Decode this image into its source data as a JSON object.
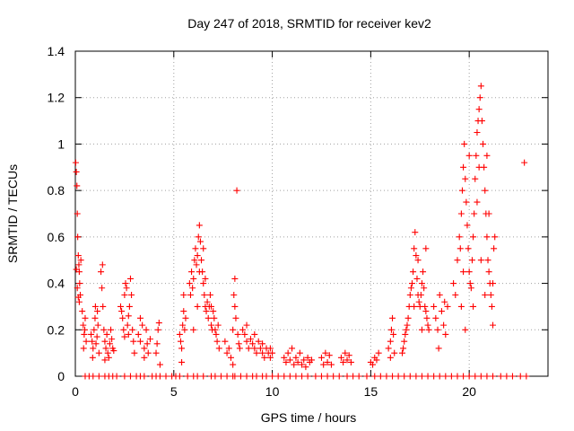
{
  "chart_data": {
    "type": "scatter",
    "title": "Day 247 of 2018, SRMTID for receiver kev2",
    "xlabel": "GPS time / hours",
    "ylabel": "SRMTID / TECUs",
    "xlim": [
      0,
      24
    ],
    "ylim": [
      0,
      1.4
    ],
    "xticks": [
      "0",
      "5",
      "10",
      "15",
      "20"
    ],
    "xtick_values": [
      0,
      5,
      10,
      15,
      20
    ],
    "yticks": [
      "0",
      "0.2",
      "0.4",
      "0.6",
      "0.8",
      "1",
      "1.2",
      "1.4"
    ],
    "ytick_values": [
      0,
      0.2,
      0.4,
      0.6,
      0.8,
      1.0,
      1.2,
      1.4
    ],
    "grid": true,
    "marker": "+",
    "marker_color": "#ff0000",
    "series": [
      {
        "name": "SRMTID kev2",
        "points": [
          [
            0.02,
            0.92
          ],
          [
            0.05,
            0.88
          ],
          [
            0.08,
            0.82
          ],
          [
            0.1,
            0.7
          ],
          [
            0.12,
            0.6
          ],
          [
            0.15,
            0.52
          ],
          [
            0.18,
            0.48
          ],
          [
            0.2,
            0.45
          ],
          [
            0.22,
            0.4
          ],
          [
            0.25,
            0.35
          ],
          [
            0.28,
            0.5
          ],
          [
            0.05,
            0.46
          ],
          [
            0.1,
            0.38
          ],
          [
            0.15,
            0.34
          ],
          [
            0.2,
            0.32
          ],
          [
            0.4,
            0.22
          ],
          [
            0.45,
            0.18
          ],
          [
            0.5,
            0.25
          ],
          [
            0.55,
            0.15
          ],
          [
            0.35,
            0.28
          ],
          [
            0.42,
            0.12
          ],
          [
            0.48,
            0.2
          ],
          [
            0.8,
            0.18
          ],
          [
            0.85,
            0.15
          ],
          [
            0.9,
            0.12
          ],
          [
            0.95,
            0.2
          ],
          [
            1.0,
            0.25
          ],
          [
            1.05,
            0.14
          ],
          [
            1.1,
            0.17
          ],
          [
            1.15,
            0.22
          ],
          [
            1.2,
            0.1
          ],
          [
            0.88,
            0.08
          ],
          [
            1.02,
            0.3
          ],
          [
            1.12,
            0.28
          ],
          [
            1.3,
            0.45
          ],
          [
            1.35,
            0.38
          ],
          [
            1.4,
            0.3
          ],
          [
            1.45,
            0.2
          ],
          [
            1.5,
            0.15
          ],
          [
            1.55,
            0.12
          ],
          [
            1.6,
            0.18
          ],
          [
            1.65,
            0.1
          ],
          [
            1.7,
            0.08
          ],
          [
            1.75,
            0.14
          ],
          [
            1.8,
            0.2
          ],
          [
            1.85,
            0.16
          ],
          [
            1.9,
            0.12
          ],
          [
            1.95,
            0.11
          ],
          [
            1.38,
            0.48
          ],
          [
            1.5,
            0.07
          ],
          [
            2.3,
            0.3
          ],
          [
            2.35,
            0.28
          ],
          [
            2.4,
            0.25
          ],
          [
            2.45,
            0.2
          ],
          [
            2.5,
            0.35
          ],
          [
            2.55,
            0.4
          ],
          [
            2.6,
            0.38
          ],
          [
            2.65,
            0.22
          ],
          [
            2.7,
            0.18
          ],
          [
            2.75,
            0.3
          ],
          [
            2.8,
            0.42
          ],
          [
            2.85,
            0.35
          ],
          [
            2.9,
            0.2
          ],
          [
            2.95,
            0.15
          ],
          [
            3.0,
            0.1
          ],
          [
            2.5,
            0.17
          ],
          [
            2.7,
            0.26
          ],
          [
            3.2,
            0.18
          ],
          [
            3.3,
            0.15
          ],
          [
            3.4,
            0.22
          ],
          [
            3.5,
            0.12
          ],
          [
            3.6,
            0.2
          ],
          [
            3.7,
            0.1
          ],
          [
            3.8,
            0.16
          ],
          [
            3.3,
            0.25
          ],
          [
            3.5,
            0.08
          ],
          [
            3.65,
            0.14
          ],
          [
            4.1,
            0.1
          ],
          [
            4.2,
            0.2
          ],
          [
            4.3,
            0.05
          ],
          [
            4.15,
            0.14
          ],
          [
            4.25,
            0.23
          ],
          [
            5.3,
            0.18
          ],
          [
            5.35,
            0.15
          ],
          [
            5.4,
            0.12
          ],
          [
            5.45,
            0.22
          ],
          [
            5.5,
            0.28
          ],
          [
            5.55,
            0.2
          ],
          [
            5.6,
            0.25
          ],
          [
            5.4,
            0.06
          ],
          [
            5.5,
            0.35
          ],
          [
            5.8,
            0.4
          ],
          [
            5.85,
            0.35
          ],
          [
            5.9,
            0.45
          ],
          [
            5.95,
            0.38
          ],
          [
            6.0,
            0.42
          ],
          [
            6.05,
            0.5
          ],
          [
            6.1,
            0.55
          ],
          [
            6.15,
            0.48
          ],
          [
            6.2,
            0.52
          ],
          [
            6.25,
            0.6
          ],
          [
            6.3,
            0.65
          ],
          [
            6.35,
            0.58
          ],
          [
            6.4,
            0.5
          ],
          [
            6.45,
            0.45
          ],
          [
            6.5,
            0.4
          ],
          [
            6.55,
            0.35
          ],
          [
            6.6,
            0.3
          ],
          [
            6.65,
            0.28
          ],
          [
            6.7,
            0.32
          ],
          [
            6.75,
            0.25
          ],
          [
            6.8,
            0.3
          ],
          [
            6.85,
            0.35
          ],
          [
            6.9,
            0.22
          ],
          [
            6.95,
            0.2
          ],
          [
            7.0,
            0.28
          ],
          [
            7.05,
            0.25
          ],
          [
            7.1,
            0.2
          ],
          [
            7.15,
            0.18
          ],
          [
            7.2,
            0.15
          ],
          [
            7.25,
            0.22
          ],
          [
            7.3,
            0.12
          ],
          [
            6.2,
            0.3
          ],
          [
            6.3,
            0.45
          ],
          [
            6.5,
            0.55
          ],
          [
            6.0,
            0.2
          ],
          [
            6.6,
            0.42
          ],
          [
            6.9,
            0.3
          ],
          [
            7.6,
            0.15
          ],
          [
            7.7,
            0.1
          ],
          [
            7.8,
            0.12
          ],
          [
            7.9,
            0.08
          ],
          [
            8.0,
            0.2
          ],
          [
            8.05,
            0.35
          ],
          [
            8.1,
            0.3
          ],
          [
            8.15,
            0.25
          ],
          [
            8.2,
            0.8
          ],
          [
            8.25,
            0.18
          ],
          [
            8.3,
            0.14
          ],
          [
            8.35,
            0.12
          ],
          [
            8.0,
            0.05
          ],
          [
            8.1,
            0.42
          ],
          [
            8.5,
            0.2
          ],
          [
            8.6,
            0.18
          ],
          [
            8.7,
            0.15
          ],
          [
            8.8,
            0.12
          ],
          [
            8.9,
            0.16
          ],
          [
            9.0,
            0.14
          ],
          [
            9.1,
            0.12
          ],
          [
            9.2,
            0.1
          ],
          [
            9.3,
            0.15
          ],
          [
            9.4,
            0.12
          ],
          [
            9.5,
            0.1
          ],
          [
            9.6,
            0.08
          ],
          [
            9.7,
            0.12
          ],
          [
            9.8,
            0.1
          ],
          [
            9.9,
            0.08
          ],
          [
            10.0,
            0.1
          ],
          [
            8.7,
            0.22
          ],
          [
            9.1,
            0.18
          ],
          [
            9.5,
            0.14
          ],
          [
            9.9,
            0.12
          ],
          [
            10.6,
            0.08
          ],
          [
            10.7,
            0.06
          ],
          [
            10.8,
            0.1
          ],
          [
            10.9,
            0.07
          ],
          [
            11.0,
            0.12
          ],
          [
            11.1,
            0.05
          ],
          [
            11.2,
            0.08
          ],
          [
            11.3,
            0.06
          ],
          [
            11.4,
            0.1
          ],
          [
            11.5,
            0.05
          ],
          [
            11.6,
            0.07
          ],
          [
            11.7,
            0.04
          ],
          [
            11.8,
            0.08
          ],
          [
            11.9,
            0.06
          ],
          [
            12.0,
            0.07
          ],
          [
            12.5,
            0.08
          ],
          [
            12.6,
            0.05
          ],
          [
            12.7,
            0.1
          ],
          [
            12.8,
            0.06
          ],
          [
            12.9,
            0.09
          ],
          [
            13.0,
            0.05
          ],
          [
            13.5,
            0.08
          ],
          [
            13.6,
            0.06
          ],
          [
            13.7,
            0.1
          ],
          [
            13.8,
            0.07
          ],
          [
            13.9,
            0.09
          ],
          [
            14.0,
            0.06
          ],
          [
            15.0,
            0.06
          ],
          [
            15.1,
            0.05
          ],
          [
            15.2,
            0.08
          ],
          [
            15.3,
            0.07
          ],
          [
            15.4,
            0.1
          ],
          [
            15.9,
            0.12
          ],
          [
            16.0,
            0.15
          ],
          [
            16.05,
            0.2
          ],
          [
            16.1,
            0.25
          ],
          [
            16.15,
            0.18
          ],
          [
            16.2,
            0.1
          ],
          [
            16.0,
            0.08
          ],
          [
            16.6,
            0.1
          ],
          [
            16.65,
            0.12
          ],
          [
            16.7,
            0.15
          ],
          [
            16.75,
            0.18
          ],
          [
            16.8,
            0.2
          ],
          [
            16.85,
            0.22
          ],
          [
            16.9,
            0.25
          ],
          [
            16.95,
            0.3
          ],
          [
            17.0,
            0.35
          ],
          [
            17.05,
            0.38
          ],
          [
            17.1,
            0.4
          ],
          [
            17.15,
            0.45
          ],
          [
            17.2,
            0.55
          ],
          [
            17.25,
            0.62
          ],
          [
            17.3,
            0.52
          ],
          [
            17.35,
            0.42
          ],
          [
            17.4,
            0.35
          ],
          [
            17.45,
            0.32
          ],
          [
            17.5,
            0.3
          ],
          [
            17.55,
            0.35
          ],
          [
            17.6,
            0.4
          ],
          [
            17.65,
            0.45
          ],
          [
            17.7,
            0.38
          ],
          [
            17.75,
            0.3
          ],
          [
            17.8,
            0.28
          ],
          [
            17.85,
            0.25
          ],
          [
            17.9,
            0.22
          ],
          [
            17.95,
            0.2
          ],
          [
            17.2,
            0.3
          ],
          [
            17.4,
            0.5
          ],
          [
            17.6,
            0.2
          ],
          [
            17.8,
            0.55
          ],
          [
            18.2,
            0.3
          ],
          [
            18.3,
            0.25
          ],
          [
            18.4,
            0.2
          ],
          [
            18.5,
            0.35
          ],
          [
            18.6,
            0.28
          ],
          [
            18.7,
            0.22
          ],
          [
            18.8,
            0.18
          ],
          [
            18.9,
            0.3
          ],
          [
            18.45,
            0.12
          ],
          [
            18.75,
            0.32
          ],
          [
            19.2,
            0.4
          ],
          [
            19.3,
            0.35
          ],
          [
            19.4,
            0.5
          ],
          [
            19.5,
            0.6
          ],
          [
            19.55,
            0.55
          ],
          [
            19.6,
            0.7
          ],
          [
            19.65,
            0.8
          ],
          [
            19.7,
            0.9
          ],
          [
            19.75,
            1.0
          ],
          [
            19.8,
            0.85
          ],
          [
            19.85,
            0.75
          ],
          [
            19.9,
            0.65
          ],
          [
            19.95,
            0.55
          ],
          [
            20.0,
            0.45
          ],
          [
            20.05,
            0.4
          ],
          [
            20.1,
            0.38
          ],
          [
            20.15,
            0.5
          ],
          [
            20.2,
            0.6
          ],
          [
            20.25,
            0.7
          ],
          [
            20.3,
            0.85
          ],
          [
            20.35,
            0.95
          ],
          [
            20.4,
            1.05
          ],
          [
            20.45,
            1.1
          ],
          [
            20.5,
            1.15
          ],
          [
            20.55,
            1.2
          ],
          [
            20.6,
            1.25
          ],
          [
            20.65,
            1.1
          ],
          [
            20.7,
            1.0
          ],
          [
            20.75,
            0.9
          ],
          [
            20.8,
            0.8
          ],
          [
            20.85,
            0.7
          ],
          [
            20.9,
            0.6
          ],
          [
            20.95,
            0.5
          ],
          [
            21.0,
            0.45
          ],
          [
            21.05,
            0.4
          ],
          [
            21.1,
            0.35
          ],
          [
            21.15,
            0.3
          ],
          [
            21.2,
            0.22
          ],
          [
            21.25,
            0.55
          ],
          [
            21.3,
            0.6
          ],
          [
            19.6,
            0.3
          ],
          [
            19.8,
            0.2
          ],
          [
            20.0,
            0.95
          ],
          [
            20.2,
            0.3
          ],
          [
            20.4,
            0.75
          ],
          [
            20.6,
            0.5
          ],
          [
            20.8,
            0.35
          ],
          [
            21.0,
            0.7
          ],
          [
            21.2,
            0.4
          ],
          [
            20.5,
            0.9
          ],
          [
            19.7,
            0.45
          ],
          [
            20.9,
            0.95
          ],
          [
            22.8,
            0.92
          ]
        ]
      }
    ],
    "zero_value_hours": [
      0.5,
      0.7,
      0.9,
      1.2,
      1.5,
      1.7,
      1.9,
      2.1,
      2.5,
      2.8,
      3.1,
      3.3,
      3.5,
      3.9,
      4.1,
      4.3,
      4.6,
      4.9,
      5.1,
      5.3,
      5.7,
      6.0,
      6.2,
      6.5,
      6.9,
      7.1,
      7.4,
      7.7,
      8.0,
      8.1,
      8.4,
      8.7,
      9.0,
      9.2,
      9.5,
      9.7,
      10.0,
      10.3,
      10.6,
      10.9,
      11.2,
      11.5,
      11.8,
      12.2,
      12.5,
      12.8,
      13.1,
      13.4,
      13.8,
      14.1,
      14.4,
      14.8,
      15.2,
      15.5,
      15.8,
      16.1,
      16.4,
      16.7,
      17.0,
      17.3,
      17.6,
      17.9,
      18.2,
      18.5,
      18.8,
      19.1,
      19.4,
      19.7,
      20.0,
      20.3,
      20.6,
      20.9,
      21.2,
      21.6,
      21.9,
      22.2,
      22.6,
      22.9
    ]
  }
}
